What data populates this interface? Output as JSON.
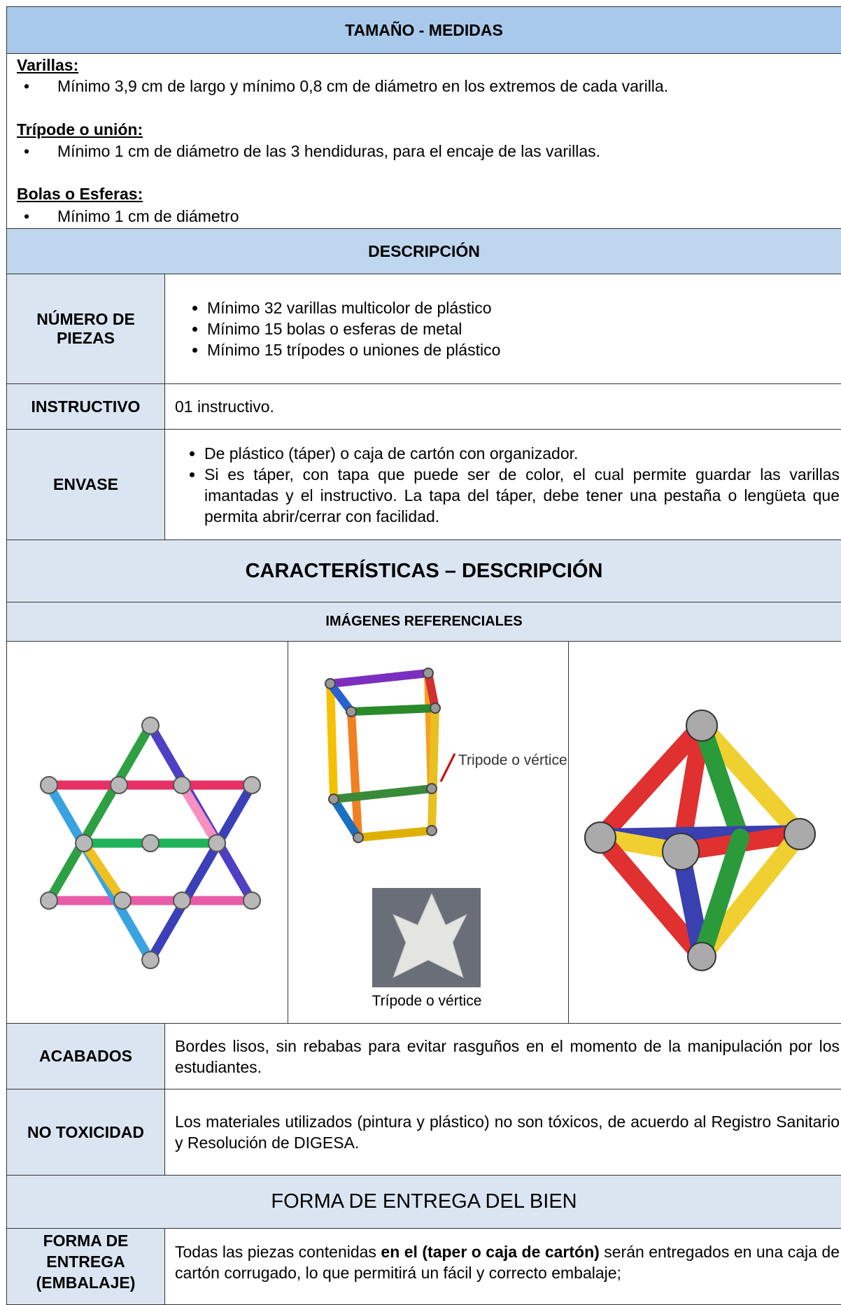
{
  "size": {
    "title": "TAMAÑO - MEDIDAS",
    "groups": [
      {
        "heading": "Varillas:",
        "items": [
          "Mínimo 3,9 cm de largo y mínimo 0,8 cm de diámetro en los extremos de cada varilla."
        ]
      },
      {
        "heading": "Trípode o unión:",
        "items": [
          "Mínimo 1 cm de diámetro de las 3 hendiduras, para el encaje de las varillas."
        ]
      },
      {
        "heading": "Bolas o Esferas:",
        "items": [
          "Mínimo 1 cm de diámetro"
        ]
      }
    ]
  },
  "description": {
    "title": "DESCRIPCIÓN",
    "pieces": {
      "label": "NÚMERO DE PIEZAS",
      "items": [
        "Mínimo 32 varillas multicolor de plástico",
        "Mínimo 15 bolas o esferas de metal",
        "Mínimo 15 trípodes o uniones de plástico"
      ]
    },
    "manual": {
      "label": "INSTRUCTIVO",
      "text": "01 instructivo."
    },
    "container": {
      "label": "ENVASE",
      "items": [
        "De plástico (táper) o caja de cartón con organizador.",
        "Si es táper, con tapa que puede ser de color, el cual permite guardar las varillas imantadas y el instructivo. La tapa del táper, debe tener una pestaña o lengüeta que permita abrir/cerrar con facilidad."
      ]
    }
  },
  "features": {
    "title": "CARACTERÍSTICAS – DESCRIPCIÓN",
    "images_title": "IMÁGENES REFERENCIALES",
    "image_label": "Tripode o vértice",
    "image_caption": "Trípode o vértice",
    "finish": {
      "label": "ACABADOS",
      "text": "Bordes lisos, sin rebabas para evitar rasguños en el momento de la manipulación por los estudiantes."
    },
    "toxicity": {
      "label": "NO TOXICIDAD",
      "text": "Los materiales utilizados (pintura y plástico) no son tóxicos, de acuerdo al Registro Sanitario y Resolución de DIGESA."
    }
  },
  "delivery": {
    "title": "FORMA DE ENTREGA DEL BIEN",
    "label": "FORMA DE ENTREGA (EMBALAJE)",
    "text_parts": [
      "Todas las piezas contenidas ",
      "en el (taper o caja de cartón)",
      " serán entregados en una caja de cartón corrugado, lo que permitirá un fácil y correcto embalaje;"
    ]
  }
}
